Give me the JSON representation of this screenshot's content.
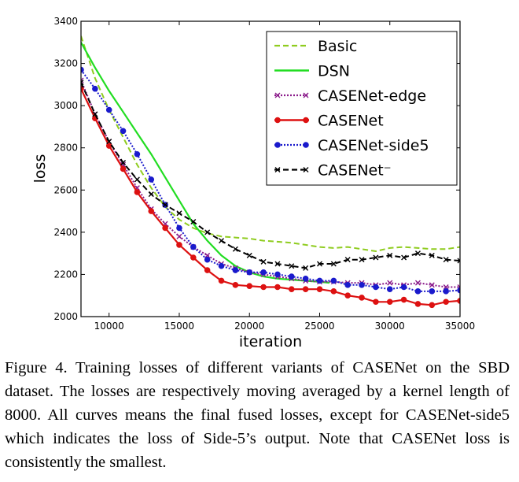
{
  "caption": "Figure 4. Training losses of different variants of CASENet on the SBD dataset. The losses are respectively moving averaged by a kernel length of 8000. All curves means the final fused losses, except for CASENet-side5 which indicates the loss of Side-5’s output. Note that CASENet loss is consistently the smallest.",
  "chart_data": {
    "type": "line",
    "title": "",
    "xlabel": "iteration",
    "ylabel": "loss",
    "xlim": [
      8000,
      35000
    ],
    "ylim": [
      2000,
      3400
    ],
    "x_ticks": [
      10000,
      15000,
      20000,
      25000,
      30000,
      35000
    ],
    "y_ticks": [
      2000,
      2200,
      2400,
      2600,
      2800,
      3000,
      3200,
      3400
    ],
    "grid": false,
    "legend_position": "top-right",
    "series": [
      {
        "name": "Basic",
        "color": "#8fcc1f",
        "style": "dashed",
        "marker": "none",
        "points": [
          [
            8000,
            3330
          ],
          [
            9000,
            3130
          ],
          [
            10000,
            2980
          ],
          [
            11000,
            2850
          ],
          [
            12000,
            2720
          ],
          [
            13000,
            2610
          ],
          [
            14000,
            2520
          ],
          [
            15000,
            2460
          ],
          [
            16000,
            2420
          ],
          [
            17000,
            2395
          ],
          [
            18000,
            2380
          ],
          [
            19000,
            2375
          ],
          [
            20000,
            2370
          ],
          [
            21000,
            2360
          ],
          [
            22000,
            2355
          ],
          [
            23000,
            2350
          ],
          [
            24000,
            2340
          ],
          [
            25000,
            2330
          ],
          [
            26000,
            2325
          ],
          [
            27000,
            2330
          ],
          [
            28000,
            2320
          ],
          [
            29000,
            2310
          ],
          [
            30000,
            2325
          ],
          [
            31000,
            2330
          ],
          [
            32000,
            2325
          ],
          [
            33000,
            2320
          ],
          [
            34000,
            2320
          ],
          [
            35000,
            2330
          ]
        ]
      },
      {
        "name": "DSN",
        "color": "#22dd22",
        "style": "solid",
        "marker": "none",
        "points": [
          [
            8000,
            3300
          ],
          [
            9000,
            3180
          ],
          [
            10000,
            3070
          ],
          [
            11000,
            2970
          ],
          [
            12000,
            2870
          ],
          [
            13000,
            2770
          ],
          [
            14000,
            2660
          ],
          [
            15000,
            2550
          ],
          [
            16000,
            2440
          ],
          [
            17000,
            2360
          ],
          [
            18000,
            2290
          ],
          [
            19000,
            2240
          ],
          [
            20000,
            2210
          ],
          [
            21000,
            2190
          ],
          [
            22000,
            2180
          ],
          [
            23000,
            2175
          ],
          [
            24000,
            2170
          ],
          [
            25000,
            2165
          ],
          [
            25700,
            2160
          ]
        ]
      },
      {
        "name": "CASENet-edge",
        "color": "#8a1a8a",
        "style": "dotted",
        "marker": "x",
        "points": [
          [
            8000,
            3120
          ],
          [
            9000,
            2960
          ],
          [
            10000,
            2830
          ],
          [
            11000,
            2720
          ],
          [
            12000,
            2610
          ],
          [
            13000,
            2510
          ],
          [
            14000,
            2440
          ],
          [
            15000,
            2380
          ],
          [
            16000,
            2330
          ],
          [
            17000,
            2290
          ],
          [
            18000,
            2250
          ],
          [
            19000,
            2230
          ],
          [
            20000,
            2210
          ],
          [
            21000,
            2200
          ],
          [
            22000,
            2190
          ],
          [
            23000,
            2180
          ],
          [
            24000,
            2170
          ],
          [
            25000,
            2165
          ],
          [
            26000,
            2165
          ],
          [
            27000,
            2160
          ],
          [
            28000,
            2160
          ],
          [
            29000,
            2150
          ],
          [
            30000,
            2160
          ],
          [
            31000,
            2150
          ],
          [
            32000,
            2160
          ],
          [
            33000,
            2150
          ],
          [
            34000,
            2140
          ],
          [
            35000,
            2140
          ]
        ]
      },
      {
        "name": "CASENet",
        "color": "#dd1111",
        "style": "solid",
        "marker": "o",
        "points": [
          [
            8000,
            3080
          ],
          [
            9000,
            2940
          ],
          [
            10000,
            2810
          ],
          [
            11000,
            2700
          ],
          [
            12000,
            2590
          ],
          [
            13000,
            2500
          ],
          [
            14000,
            2420
          ],
          [
            15000,
            2340
          ],
          [
            16000,
            2280
          ],
          [
            17000,
            2220
          ],
          [
            18000,
            2170
          ],
          [
            19000,
            2150
          ],
          [
            20000,
            2145
          ],
          [
            21000,
            2140
          ],
          [
            22000,
            2140
          ],
          [
            23000,
            2130
          ],
          [
            24000,
            2130
          ],
          [
            25000,
            2130
          ],
          [
            26000,
            2120
          ],
          [
            27000,
            2100
          ],
          [
            28000,
            2090
          ],
          [
            29000,
            2070
          ],
          [
            30000,
            2070
          ],
          [
            31000,
            2080
          ],
          [
            32000,
            2060
          ],
          [
            33000,
            2055
          ],
          [
            34000,
            2070
          ],
          [
            35000,
            2075
          ]
        ]
      },
      {
        "name": "CASENet-side5",
        "color": "#1a1acc",
        "style": "dotted",
        "marker": "o",
        "points": [
          [
            8000,
            3170
          ],
          [
            9000,
            3080
          ],
          [
            10000,
            2980
          ],
          [
            11000,
            2880
          ],
          [
            12000,
            2770
          ],
          [
            13000,
            2650
          ],
          [
            14000,
            2530
          ],
          [
            15000,
            2420
          ],
          [
            16000,
            2330
          ],
          [
            17000,
            2270
          ],
          [
            18000,
            2240
          ],
          [
            19000,
            2220
          ],
          [
            20000,
            2210
          ],
          [
            21000,
            2210
          ],
          [
            22000,
            2200
          ],
          [
            23000,
            2190
          ],
          [
            24000,
            2180
          ],
          [
            25000,
            2170
          ],
          [
            26000,
            2170
          ],
          [
            27000,
            2150
          ],
          [
            28000,
            2150
          ],
          [
            29000,
            2140
          ],
          [
            30000,
            2130
          ],
          [
            31000,
            2140
          ],
          [
            32000,
            2120
          ],
          [
            33000,
            2120
          ],
          [
            34000,
            2120
          ],
          [
            35000,
            2125
          ]
        ]
      },
      {
        "name": "CASENet⁻",
        "color": "#000000",
        "style": "dashed",
        "marker": "x",
        "points": [
          [
            8000,
            3110
          ],
          [
            9000,
            2960
          ],
          [
            10000,
            2830
          ],
          [
            11000,
            2730
          ],
          [
            12000,
            2650
          ],
          [
            13000,
            2580
          ],
          [
            14000,
            2530
          ],
          [
            15000,
            2490
          ],
          [
            16000,
            2450
          ],
          [
            17000,
            2400
          ],
          [
            18000,
            2360
          ],
          [
            19000,
            2320
          ],
          [
            20000,
            2290
          ],
          [
            21000,
            2260
          ],
          [
            22000,
            2250
          ],
          [
            23000,
            2240
          ],
          [
            24000,
            2230
          ],
          [
            25000,
            2250
          ],
          [
            26000,
            2250
          ],
          [
            27000,
            2270
          ],
          [
            28000,
            2270
          ],
          [
            29000,
            2280
          ],
          [
            30000,
            2290
          ],
          [
            31000,
            2280
          ],
          [
            32000,
            2300
          ],
          [
            33000,
            2290
          ],
          [
            34000,
            2270
          ],
          [
            35000,
            2265
          ]
        ]
      }
    ]
  }
}
